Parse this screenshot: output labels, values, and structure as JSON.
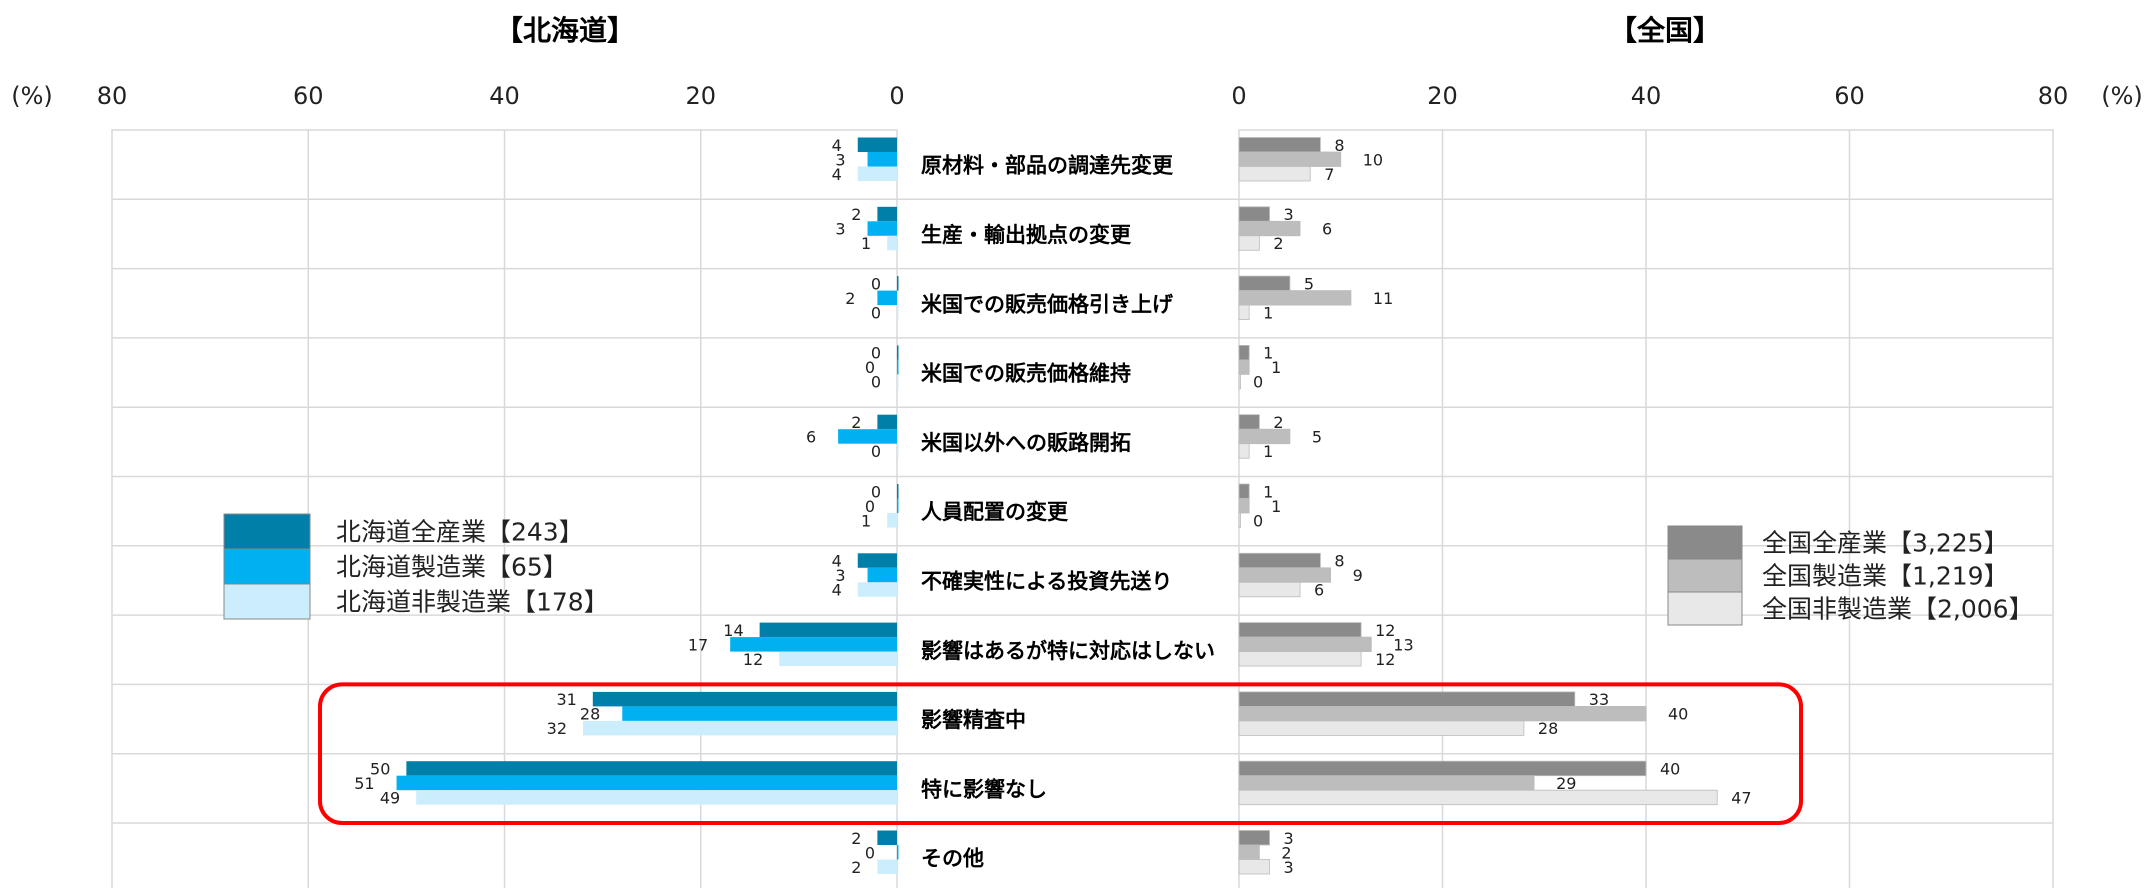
{
  "chart_data": {
    "type": "bar",
    "unit_label": "(%)",
    "categories": [
      "原材料・部品の調達先変更",
      "生産・輸出拠点の変更",
      "米国での販売価格引き上げ",
      "米国での販売価格維持",
      "米国以外への販路開拓",
      "人員配置の変更",
      "不確実性による投資先送り",
      "影響はあるが特に対応はしない",
      "影響精査中",
      "特に影響なし",
      "その他"
    ],
    "highlighted_categories": [
      "影響精査中",
      "特に影響なし"
    ],
    "panels": [
      {
        "title": "【北海道】",
        "xlim": [
          0,
          80
        ],
        "ticks": [
          "80",
          "60",
          "40",
          "20",
          "0"
        ],
        "direction": "leftward",
        "series": [
          {
            "name": "北海道全産業【243】",
            "color": "#0080A9",
            "values": [
              4,
              2,
              0,
              0,
              2,
              0,
              4,
              14,
              31,
              50,
              2
            ]
          },
          {
            "name": "北海道製造業【65】",
            "color": "#00B0F0",
            "values": [
              3,
              3,
              2,
              0,
              6,
              0,
              3,
              17,
              28,
              51,
              0
            ]
          },
          {
            "name": "北海道非製造業【178】",
            "color": "#CCEEFC",
            "values": [
              4,
              1,
              0,
              0,
              0,
              1,
              4,
              12,
              32,
              49,
              2
            ]
          }
        ]
      },
      {
        "title": "【全国】",
        "xlim": [
          0,
          80
        ],
        "ticks": [
          "0",
          "20",
          "40",
          "60",
          "80"
        ],
        "direction": "rightward",
        "series": [
          {
            "name": "全国全産業【3,225】",
            "color": "#8A8A8A",
            "values": [
              8,
              3,
              5,
              1,
              2,
              1,
              8,
              12,
              33,
              40,
              3
            ]
          },
          {
            "name": "全国製造業【1,219】",
            "color": "#BDBDBD",
            "values": [
              10,
              6,
              11,
              1,
              5,
              1,
              9,
              13,
              40,
              29,
              2
            ]
          },
          {
            "name": "全国非製造業【2,006】",
            "color": "#E8E8E8",
            "values": [
              7,
              2,
              1,
              0,
              1,
              0,
              6,
              12,
              28,
              47,
              3
            ]
          }
        ]
      }
    ]
  }
}
